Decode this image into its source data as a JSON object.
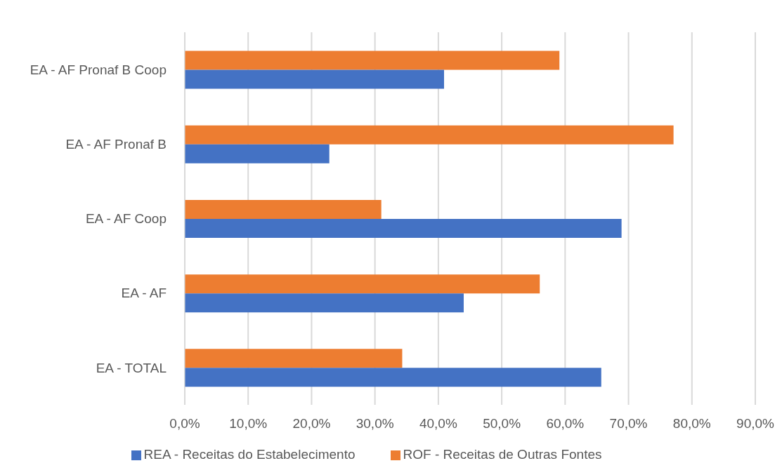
{
  "chart_data": {
    "type": "bar",
    "orientation": "horizontal",
    "categories": [
      "EA - AF Pronaf B Coop",
      "EA - AF Pronaf B",
      "EA - AF Coop",
      "EA - AF",
      "EA - TOTAL"
    ],
    "series": [
      {
        "name": "ROF - Receitas de Outras Fontes",
        "color": "#ed7d31",
        "values": [
          59.1,
          77.1,
          31.0,
          56.0,
          34.3
        ]
      },
      {
        "name": "REA - Receitas do Estabelecimento",
        "color": "#4472c4",
        "values": [
          40.9,
          22.8,
          68.9,
          44.0,
          65.7
        ]
      }
    ],
    "xlim": [
      0,
      90
    ],
    "xticks": [
      {
        "value": 0,
        "label": "0,0%"
      },
      {
        "value": 10,
        "label": "10,0%"
      },
      {
        "value": 20,
        "label": "20,0%"
      },
      {
        "value": 30,
        "label": "30,0%"
      },
      {
        "value": 40,
        "label": "40,0%"
      },
      {
        "value": 50,
        "label": "50,0%"
      },
      {
        "value": 60,
        "label": "60,0%"
      },
      {
        "value": 70,
        "label": "70,0%"
      },
      {
        "value": 80,
        "label": "80,0%"
      },
      {
        "value": 90,
        "label": "90,0%"
      }
    ],
    "grid": "x",
    "legend": "bottom"
  }
}
